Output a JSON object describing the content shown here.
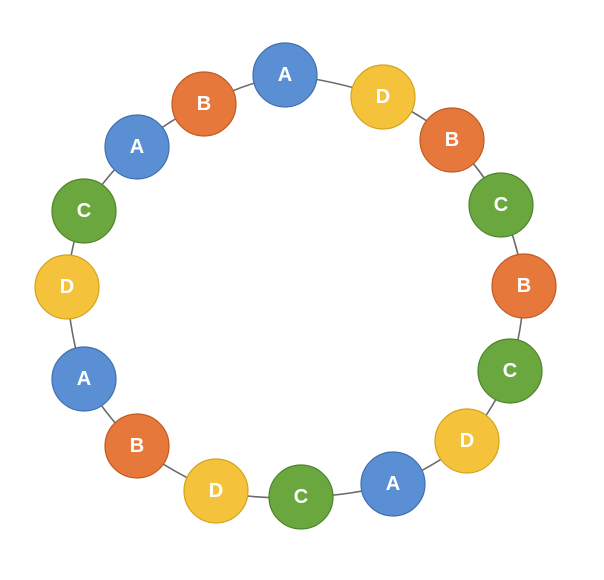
{
  "diagram": {
    "type": "ring",
    "node_colors": {
      "A": {
        "fill": "#5b8fd4",
        "stroke": "#3f6fae"
      },
      "B": {
        "fill": "#e7783b",
        "stroke": "#bf5a22"
      },
      "C": {
        "fill": "#6aa83f",
        "stroke": "#4c8428"
      },
      "D": {
        "fill": "#f5c33b",
        "stroke": "#d4a21b"
      }
    },
    "nodes": [
      {
        "label": "A"
      },
      {
        "label": "D"
      },
      {
        "label": "B"
      },
      {
        "label": "C"
      },
      {
        "label": "B"
      },
      {
        "label": "C"
      },
      {
        "label": "D"
      },
      {
        "label": "A"
      },
      {
        "label": "C"
      },
      {
        "label": "D"
      },
      {
        "label": "B"
      },
      {
        "label": "A"
      },
      {
        "label": "D"
      },
      {
        "label": "C"
      },
      {
        "label": "A"
      },
      {
        "label": "B"
      }
    ]
  }
}
